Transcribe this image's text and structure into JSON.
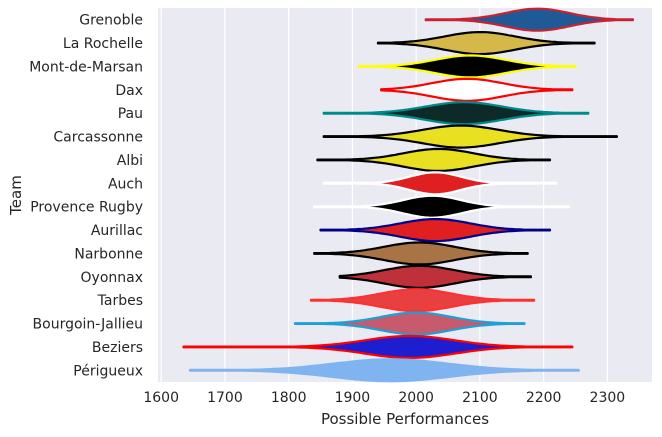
{
  "chart_data": {
    "type": "violin",
    "orientation": "horizontal",
    "xlabel": "Possible Performances",
    "ylabel": "Team",
    "xlim": [
      1595,
      2370
    ],
    "xticks": [
      1600,
      1700,
      1800,
      1900,
      2000,
      2100,
      2200,
      2300
    ],
    "grid": true,
    "background": "#eaeaf2",
    "series": [
      {
        "name": "Grenoble",
        "fill": "#1f5a96",
        "edge": "#c82333",
        "center": 2190,
        "min": 2015,
        "max": 2340,
        "spread": 50
      },
      {
        "name": "La Rochelle",
        "fill": "#d4b84a",
        "edge": "#000000",
        "center": 2100,
        "min": 1940,
        "max": 2280,
        "spread": 55
      },
      {
        "name": "Mont-de-Marsan",
        "fill": "#000000",
        "edge": "#ffff00",
        "center": 2085,
        "min": 1910,
        "max": 2250,
        "spread": 55
      },
      {
        "name": "Dax",
        "fill": "#ffffff",
        "edge": "#ff0000",
        "center": 2080,
        "min": 1945,
        "max": 2245,
        "spread": 55
      },
      {
        "name": "Pau",
        "fill": "#0d2a28",
        "edge": "#008b8b",
        "center": 2075,
        "min": 1855,
        "max": 2270,
        "spread": 60
      },
      {
        "name": "Carcassonne",
        "fill": "#e8e020",
        "edge": "#000000",
        "center": 2070,
        "min": 1855,
        "max": 2315,
        "spread": 60
      },
      {
        "name": "Albi",
        "fill": "#e8e020",
        "edge": "#000000",
        "center": 2035,
        "min": 1845,
        "max": 2210,
        "spread": 55
      },
      {
        "name": "Auch",
        "fill": "#e02020",
        "edge": "#ffffff",
        "center": 2030,
        "min": 1855,
        "max": 2220,
        "spread": 40
      },
      {
        "name": "Provence Rugby",
        "fill": "#000000",
        "edge": "#ffffff",
        "center": 2025,
        "min": 1840,
        "max": 2240,
        "spread": 45
      },
      {
        "name": "Aurillac",
        "fill": "#e02020",
        "edge": "#00008b",
        "center": 2030,
        "min": 1850,
        "max": 2210,
        "spread": 55
      },
      {
        "name": "Narbonne",
        "fill": "#a87445",
        "edge": "#000000",
        "center": 2005,
        "min": 1840,
        "max": 2175,
        "spread": 55
      },
      {
        "name": "Oyonnax",
        "fill": "#c0303a",
        "edge": "#000000",
        "center": 2005,
        "min": 1880,
        "max": 2180,
        "spread": 55
      },
      {
        "name": "Tarbes",
        "fill": "#e84040",
        "edge": "#ff3030",
        "center": 2000,
        "min": 1835,
        "max": 2185,
        "spread": 55
      },
      {
        "name": "Bourgoin-Jallieu",
        "fill": "#c85a6e",
        "edge": "#1e9fd6",
        "center": 2000,
        "min": 1810,
        "max": 2170,
        "spread": 55
      },
      {
        "name": "Beziers",
        "fill": "#1e1ed0",
        "edge": "#ff0000",
        "center": 1990,
        "min": 1635,
        "max": 2245,
        "spread": 70
      },
      {
        "name": "Périgueux",
        "fill": "#80b4f0",
        "edge": "#80b4f0",
        "center": 1960,
        "min": 1645,
        "max": 2255,
        "spread": 90
      }
    ]
  }
}
